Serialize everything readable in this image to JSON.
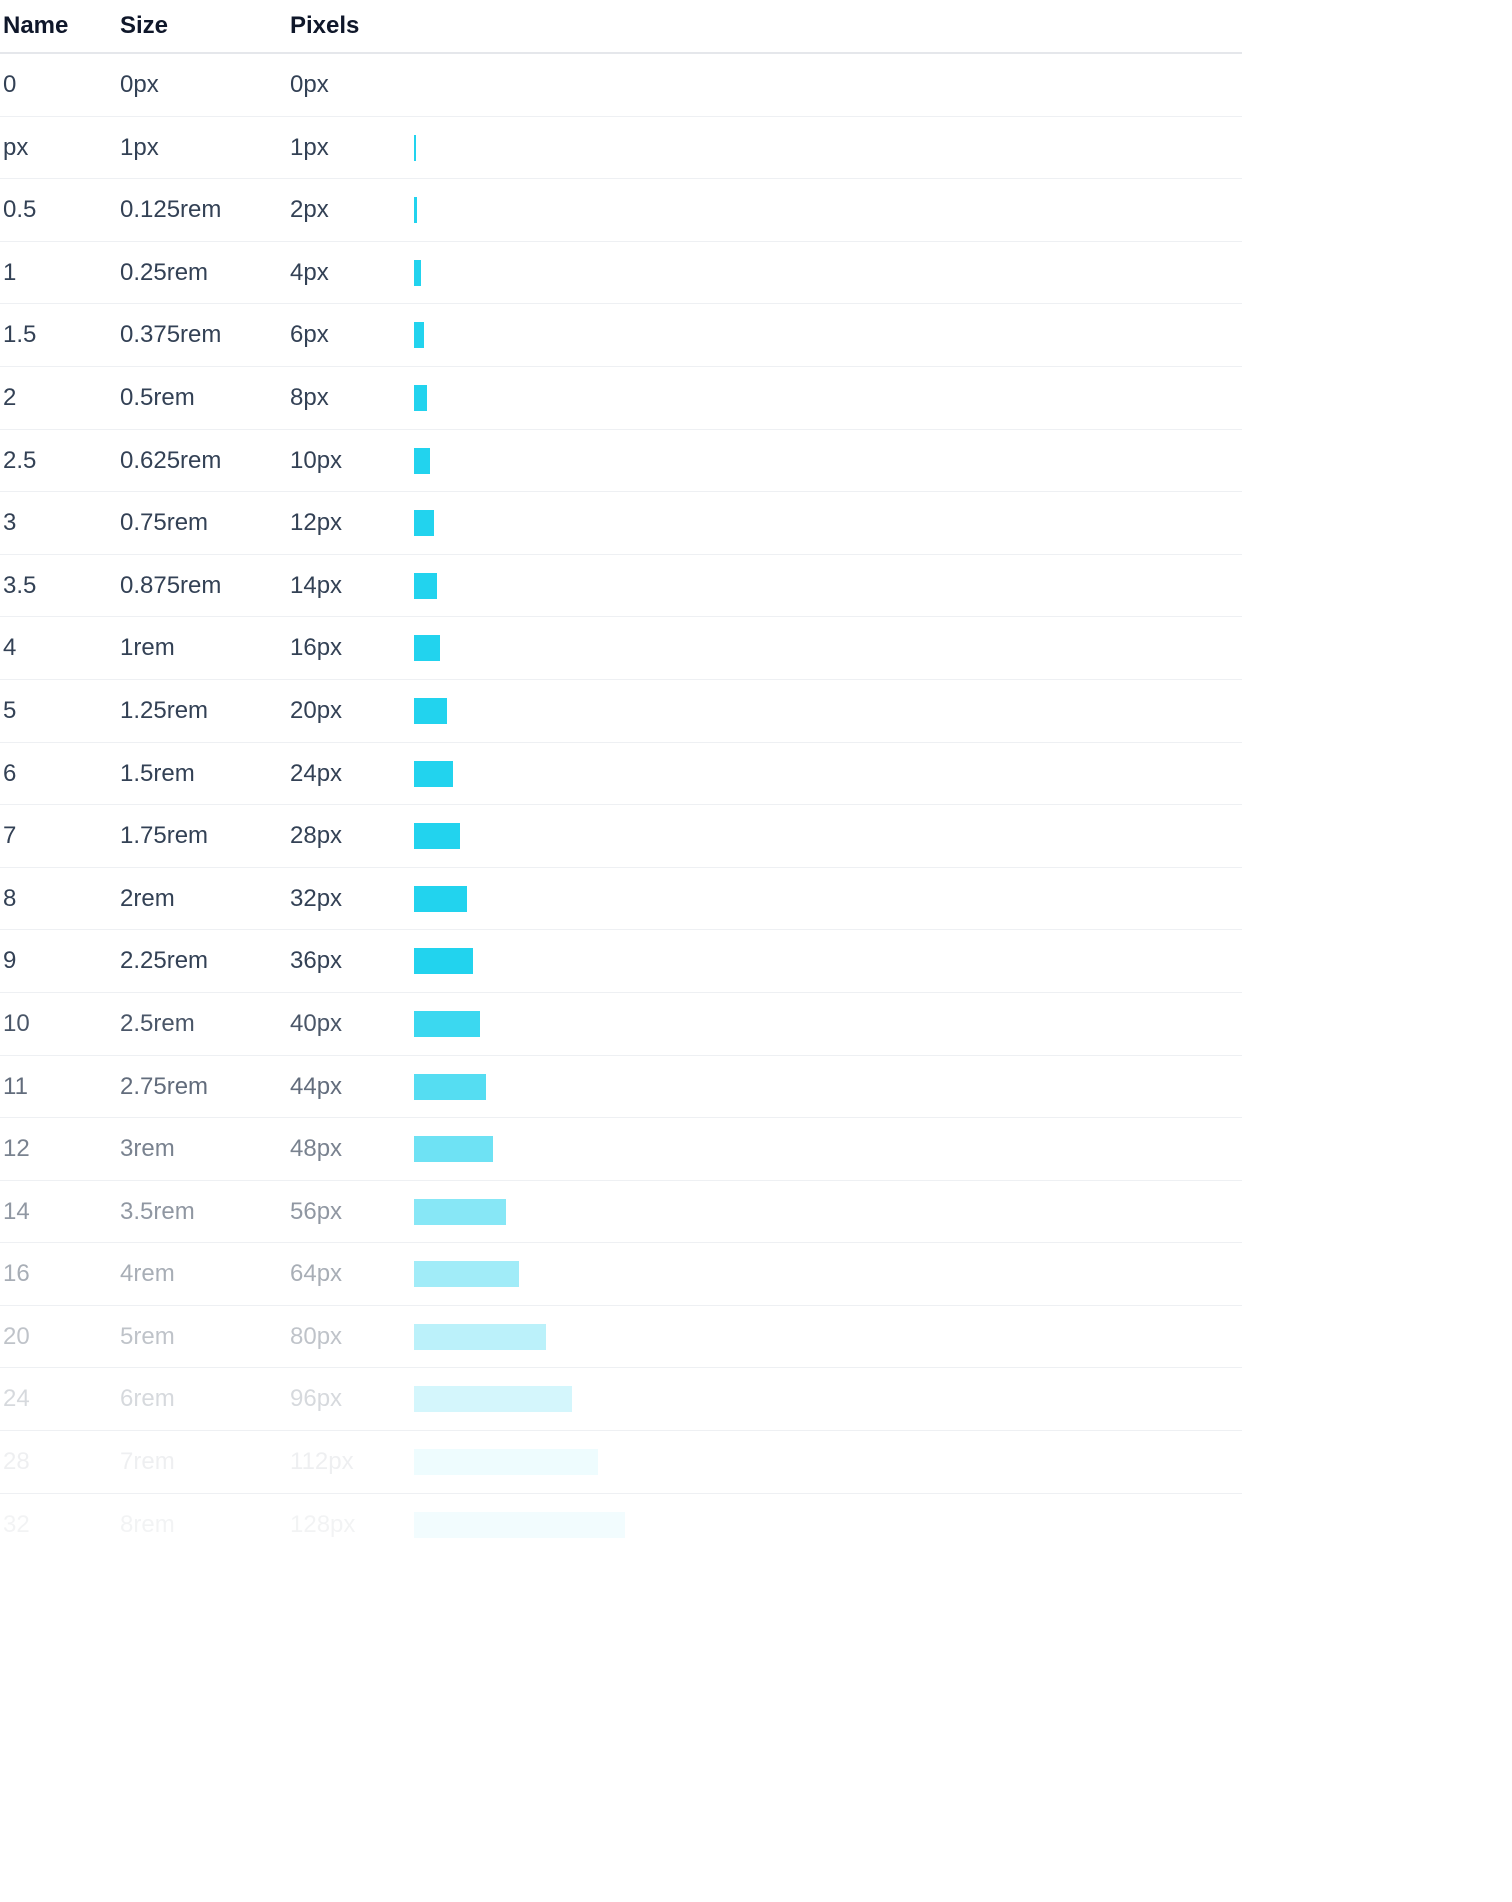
{
  "table": {
    "headers": {
      "name": "Name",
      "size": "Size",
      "pixels": "Pixels"
    },
    "rows": [
      {
        "name": "0",
        "size": "0px",
        "pixels": "0px",
        "value": 0
      },
      {
        "name": "px",
        "size": "1px",
        "pixels": "1px",
        "value": 1
      },
      {
        "name": "0.5",
        "size": "0.125rem",
        "pixels": "2px",
        "value": 2
      },
      {
        "name": "1",
        "size": "0.25rem",
        "pixels": "4px",
        "value": 4
      },
      {
        "name": "1.5",
        "size": "0.375rem",
        "pixels": "6px",
        "value": 6
      },
      {
        "name": "2",
        "size": "0.5rem",
        "pixels": "8px",
        "value": 8
      },
      {
        "name": "2.5",
        "size": "0.625rem",
        "pixels": "10px",
        "value": 10
      },
      {
        "name": "3",
        "size": "0.75rem",
        "pixels": "12px",
        "value": 12
      },
      {
        "name": "3.5",
        "size": "0.875rem",
        "pixels": "14px",
        "value": 14
      },
      {
        "name": "4",
        "size": "1rem",
        "pixels": "16px",
        "value": 16
      },
      {
        "name": "5",
        "size": "1.25rem",
        "pixels": "20px",
        "value": 20
      },
      {
        "name": "6",
        "size": "1.5rem",
        "pixels": "24px",
        "value": 24
      },
      {
        "name": "7",
        "size": "1.75rem",
        "pixels": "28px",
        "value": 28
      },
      {
        "name": "8",
        "size": "2rem",
        "pixels": "32px",
        "value": 32
      },
      {
        "name": "9",
        "size": "2.25rem",
        "pixels": "36px",
        "value": 36
      },
      {
        "name": "10",
        "size": "2.5rem",
        "pixels": "40px",
        "value": 40
      },
      {
        "name": "11",
        "size": "2.75rem",
        "pixels": "44px",
        "value": 44
      },
      {
        "name": "12",
        "size": "3rem",
        "pixels": "48px",
        "value": 48
      },
      {
        "name": "14",
        "size": "3.5rem",
        "pixels": "56px",
        "value": 56
      },
      {
        "name": "16",
        "size": "4rem",
        "pixels": "64px",
        "value": 64
      },
      {
        "name": "20",
        "size": "5rem",
        "pixels": "80px",
        "value": 80
      },
      {
        "name": "24",
        "size": "6rem",
        "pixels": "96px",
        "value": 96
      },
      {
        "name": "28",
        "size": "7rem",
        "pixels": "112px",
        "value": 112
      },
      {
        "name": "32",
        "size": "8rem",
        "pixels": "128px",
        "value": 128
      }
    ]
  },
  "colors": {
    "bar": "#22d3ee",
    "text": "#334155",
    "header_text": "#0f172a",
    "divider": "#e5e7eb"
  }
}
